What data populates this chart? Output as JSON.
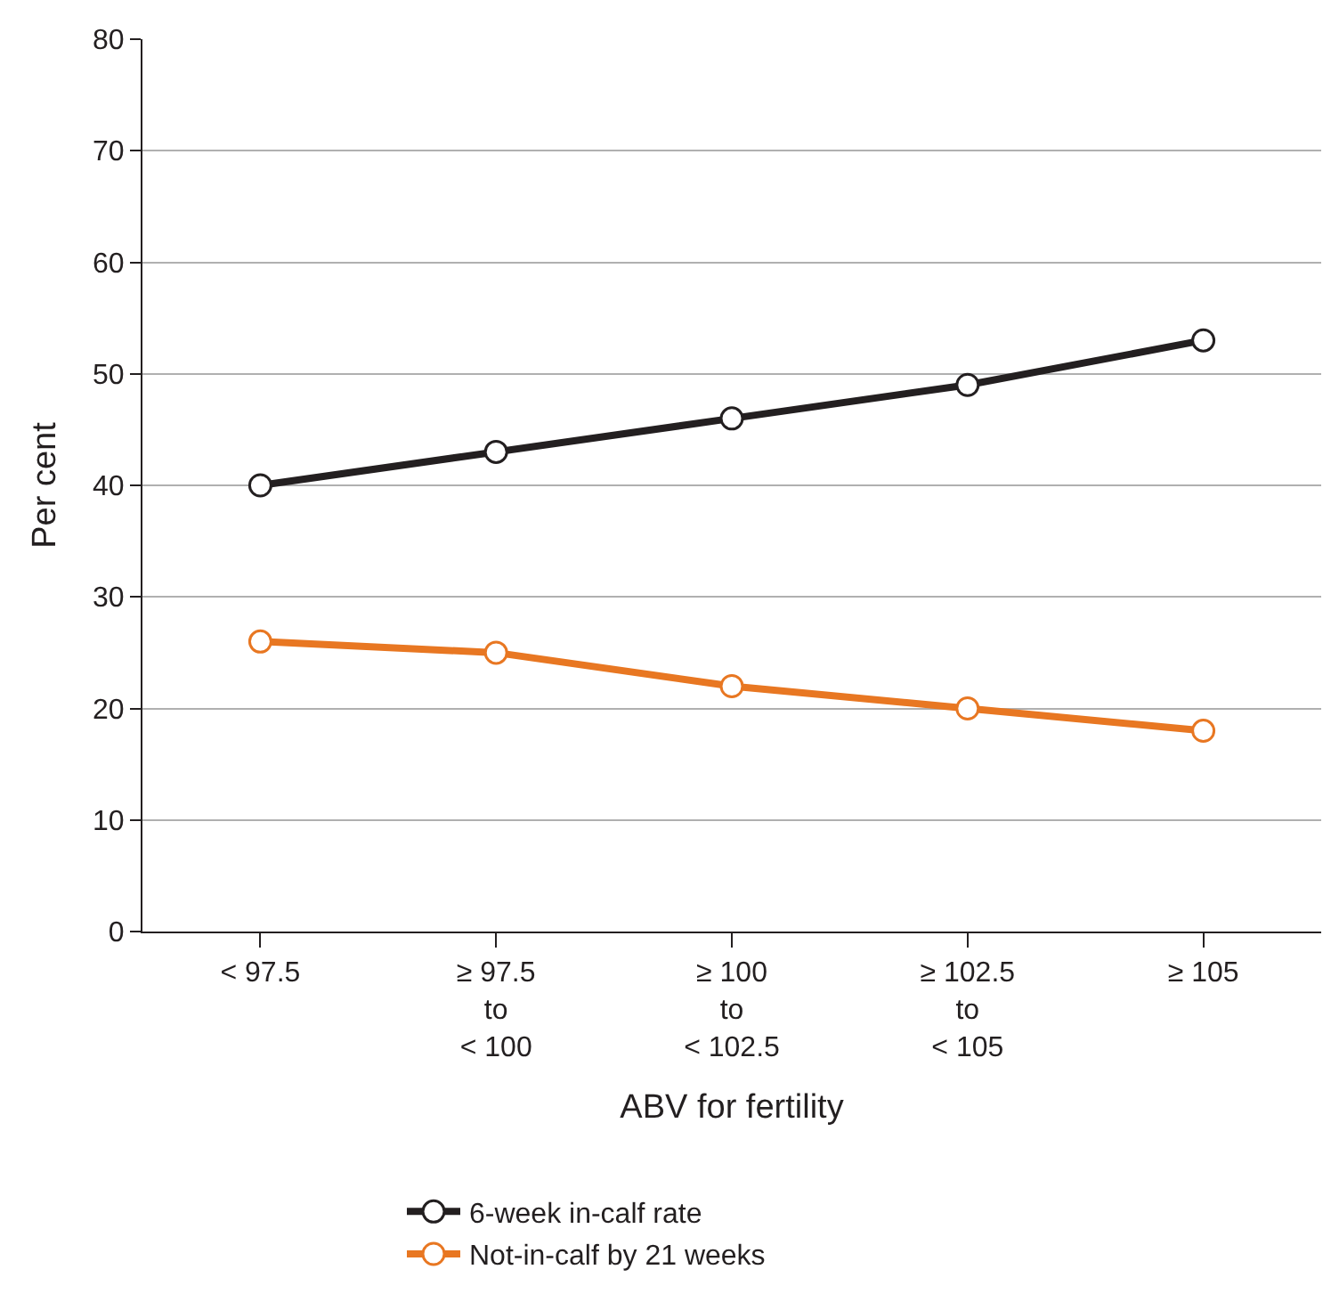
{
  "chart_data": {
    "type": "line",
    "xlabel": "ABV for fertility",
    "ylabel": "Per cent",
    "categories": [
      "< 97.5",
      "≥ 97.5\nto\n< 100",
      "≥ 100\nto\n< 102.5",
      "≥ 102.5\nto\n< 105",
      "≥ 105"
    ],
    "series": [
      {
        "name": "6-week in-calf rate",
        "color": "#231f20",
        "values": [
          40,
          43,
          46,
          49,
          53
        ]
      },
      {
        "name": "Not-in-calf by 21 weeks",
        "color": "#e87722",
        "values": [
          26,
          25,
          22,
          20,
          18
        ]
      }
    ],
    "ylim": [
      0,
      80
    ],
    "yticks": [
      0,
      10,
      20,
      30,
      40,
      50,
      60,
      70,
      80
    ],
    "grid": "y",
    "legend": "bottom",
    "marker": "circle",
    "line_style": "solid"
  }
}
